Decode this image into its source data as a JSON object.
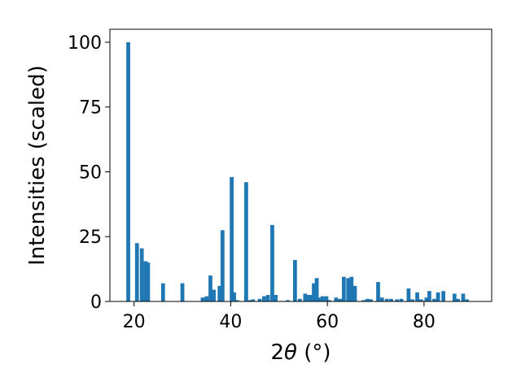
{
  "chart_data": {
    "type": "bar",
    "xlabel_prefix": "2",
    "xlabel_symbol": "θ",
    "xlabel_unit": " (°)",
    "ylabel": "Intensities (scaled)",
    "xlim": [
      15,
      94
    ],
    "ylim": [
      0,
      105
    ],
    "xticks": [
      20,
      40,
      60,
      80
    ],
    "yticks": [
      0,
      25,
      50,
      75,
      100
    ],
    "grid": false,
    "bar_color": "#1f77b4",
    "bar_width": 0.8,
    "x": [
      18.8,
      20.6,
      21.6,
      22.4,
      22.9,
      26.0,
      30.0,
      34.2,
      35.0,
      35.8,
      36.5,
      37.7,
      38.3,
      40.2,
      40.7,
      41.3,
      43.2,
      44.0,
      44.6,
      46.0,
      46.9,
      47.7,
      48.6,
      49.3,
      51.8,
      53.3,
      54.3,
      55.4,
      56.0,
      56.6,
      57.2,
      57.8,
      58.3,
      59.0,
      59.8,
      60.4,
      61.8,
      62.6,
      63.4,
      64.3,
      65.0,
      65.7,
      67.5,
      68.3,
      69.0,
      70.5,
      71.3,
      72.3,
      73.2,
      74.4,
      75.3,
      76.8,
      77.6,
      78.6,
      79.4,
      80.5,
      81.1,
      82.1,
      82.9,
      84.0,
      86.3,
      87.0,
      88.1,
      88.9
    ],
    "values": [
      100,
      22.5,
      20.5,
      15.5,
      15,
      7,
      7,
      1.5,
      2,
      10,
      4.5,
      6,
      27.5,
      48,
      3.5,
      0.5,
      46,
      0.5,
      0.8,
      1,
      2,
      2.5,
      29.5,
      2.5,
      0.5,
      16,
      1,
      3,
      2.5,
      2.5,
      7,
      9,
      1.5,
      2,
      2,
      0.5,
      1.5,
      1,
      9.5,
      9,
      9.5,
      6,
      0.5,
      1,
      0.8,
      7.5,
      1.5,
      1,
      1,
      0.8,
      1,
      5,
      0.8,
      3.5,
      0.8,
      1.5,
      4,
      1,
      3.5,
      4,
      3,
      1,
      3,
      0.8
    ]
  }
}
